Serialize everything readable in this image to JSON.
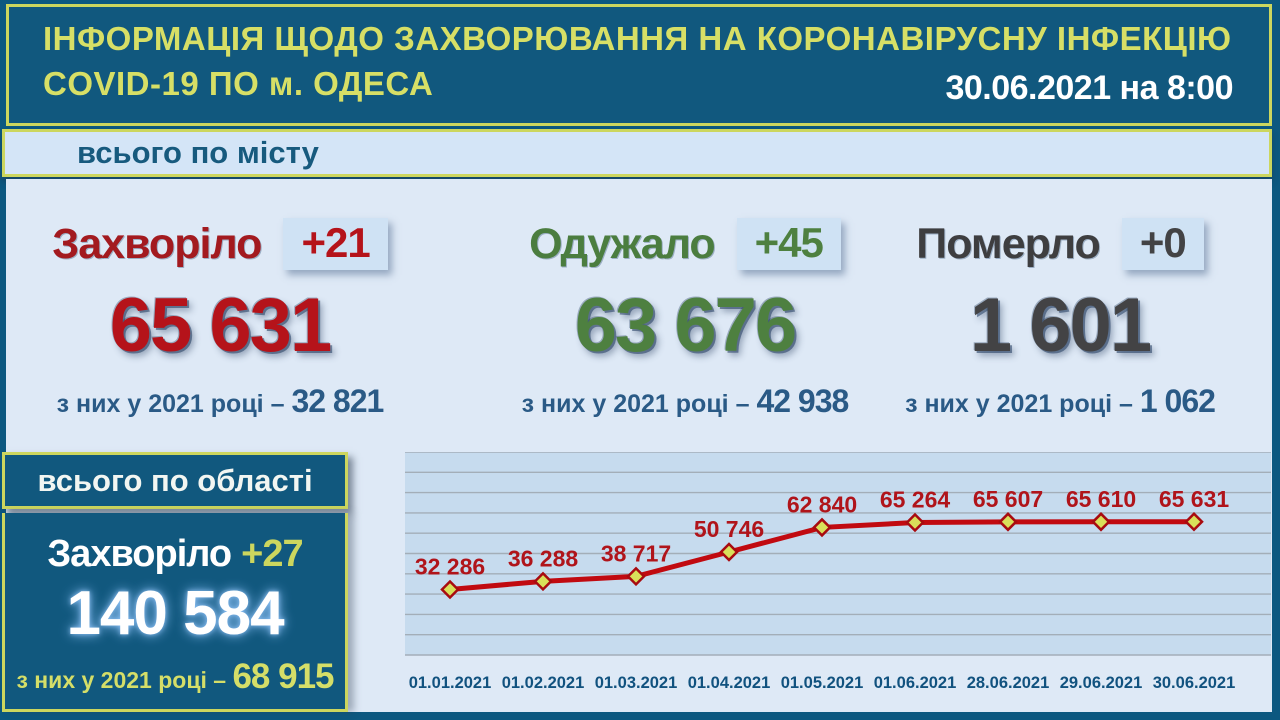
{
  "header": {
    "title_line1": "ІНФОРМАЦІЯ ЩОДО ЗАХВОРЮВАННЯ НА КОРОНАВІРУСНУ ІНФЕКЦІЮ",
    "title_line2": "COVID-19 ПО м. ОДЕСА",
    "datetime": "30.06.2021 на 8:00"
  },
  "city": {
    "section_title": "всього по місту",
    "stats": [
      {
        "label": "Захворіло",
        "delta": "+21",
        "value": "65 631",
        "year_label": "з них у 2021 році –",
        "year_value": "32 821",
        "color": "#b5131a"
      },
      {
        "label": "Одужало",
        "delta": "+45",
        "value": "63 676",
        "year_label": "з них у 2021 році –",
        "year_value": "42 938",
        "color": "#4e8040"
      },
      {
        "label": "Померло",
        "delta": "+0",
        "value": "1 601",
        "year_label": "з них у 2021 році –",
        "year_value": "1 062",
        "color": "#434345"
      }
    ]
  },
  "region": {
    "section_title": "всього по області",
    "label": "Захворіло",
    "delta": "+27",
    "value": "140 584",
    "year_label": "з них у 2021 році –",
    "year_value": "68 915"
  },
  "chart_data": {
    "type": "line",
    "title": "",
    "xlabel": "",
    "ylabel": "",
    "x": [
      "01.01.2021",
      "01.02.2021",
      "01.03.2021",
      "01.04.2021",
      "01.05.2021",
      "01.06.2021",
      "28.06.2021",
      "29.06.2021",
      "30.06.2021"
    ],
    "values": [
      32286,
      36288,
      38717,
      50746,
      62840,
      65264,
      65607,
      65610,
      65631
    ],
    "point_labels": [
      "32 286",
      "36 288",
      "38 717",
      "50 746",
      "62 840",
      "65 264",
      "65 607",
      "65 610",
      "65 631"
    ],
    "ylim": [
      0,
      100000
    ],
    "grid_step": 10000,
    "grid": true,
    "legend_position": "none",
    "plot_bg": "#c6dbee",
    "grid_color": "#a3aeb8",
    "line_color": "#c10a10",
    "marker": "diamond",
    "marker_fill": "#d9e05a",
    "marker_stroke": "#a80b10",
    "point_label_color": "#b0141a",
    "axis_label_color": "#11527f"
  },
  "colors": {
    "page_bg": "#0c5880",
    "panel_bg": "#11587e",
    "accent_yellow_green": "#ccd65e",
    "light_bar_bg": "#d4e5f7",
    "main_bg": "#dee9f6",
    "sick_red": "#b5131a",
    "recovered_green": "#4e8040",
    "dead_gray": "#434345",
    "sub_text_blue": "#2a5a86"
  }
}
